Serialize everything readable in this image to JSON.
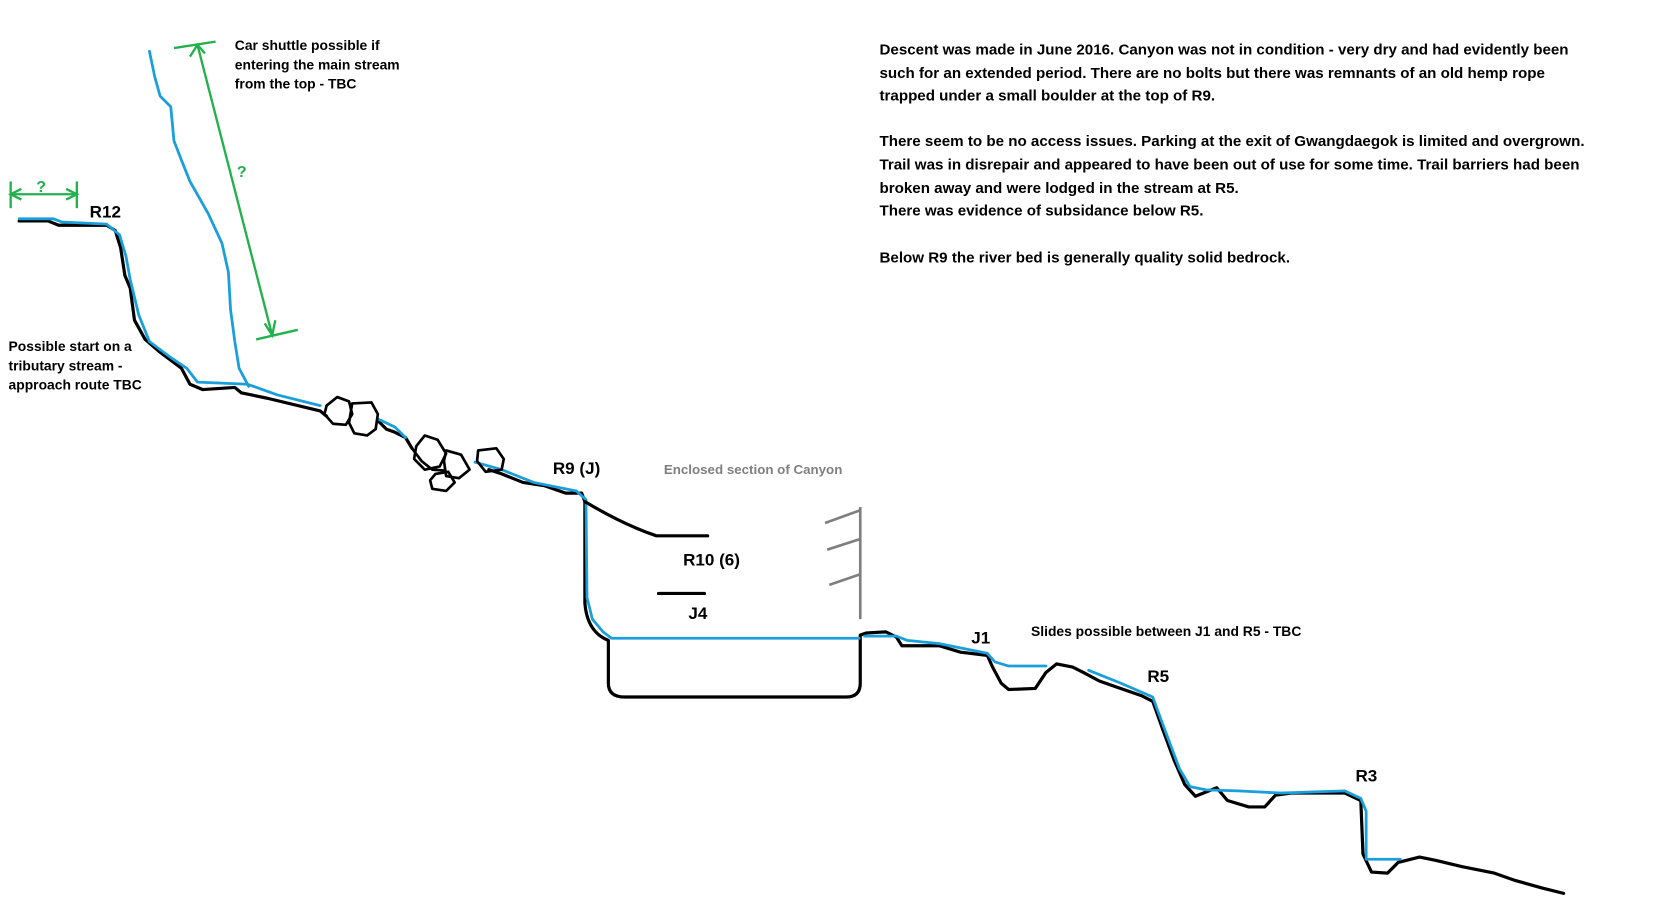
{
  "colors": {
    "water": "#1a9fdc",
    "ground": "#000000",
    "dimension": "#22b14c",
    "enclosed": "#7f7f7f"
  },
  "notes": {
    "car_shuttle": [
      "Car shuttle possible if",
      "entering the main stream",
      "from the top - TBC"
    ],
    "possible_start": [
      "Possible start on a",
      "tributary stream -",
      "approach route TBC"
    ],
    "description": [
      "Descent was made in June 2016. Canyon was not in condition - very dry and had evidently been",
      "such for an extended period. There are no bolts but there was remnants of an old hemp rope",
      "trapped under a small boulder at the top of R9.",
      "There seem to be no access issues. Parking at the exit of Gwangdaegok is limited and overgrown.",
      "Trail was in disrepair and appeared to have been out of use for some time. Trail barriers had been",
      "broken away and were lodged in the stream at R5.",
      "There was evidence of subsidance below R5.",
      "Below R9 the river bed is generally quality solid bedrock."
    ],
    "enclosed": "Enclosed section of Canyon",
    "slides": "Slides possible between J1 and R5 - TBC"
  },
  "markers": {
    "r12": "R12",
    "r9": "R9 (J)",
    "r10": "R10 (6)",
    "j4": "J4",
    "j1": "J1",
    "r5": "R5",
    "r3": "R3",
    "unknown_top": "?",
    "unknown_left": "?"
  }
}
